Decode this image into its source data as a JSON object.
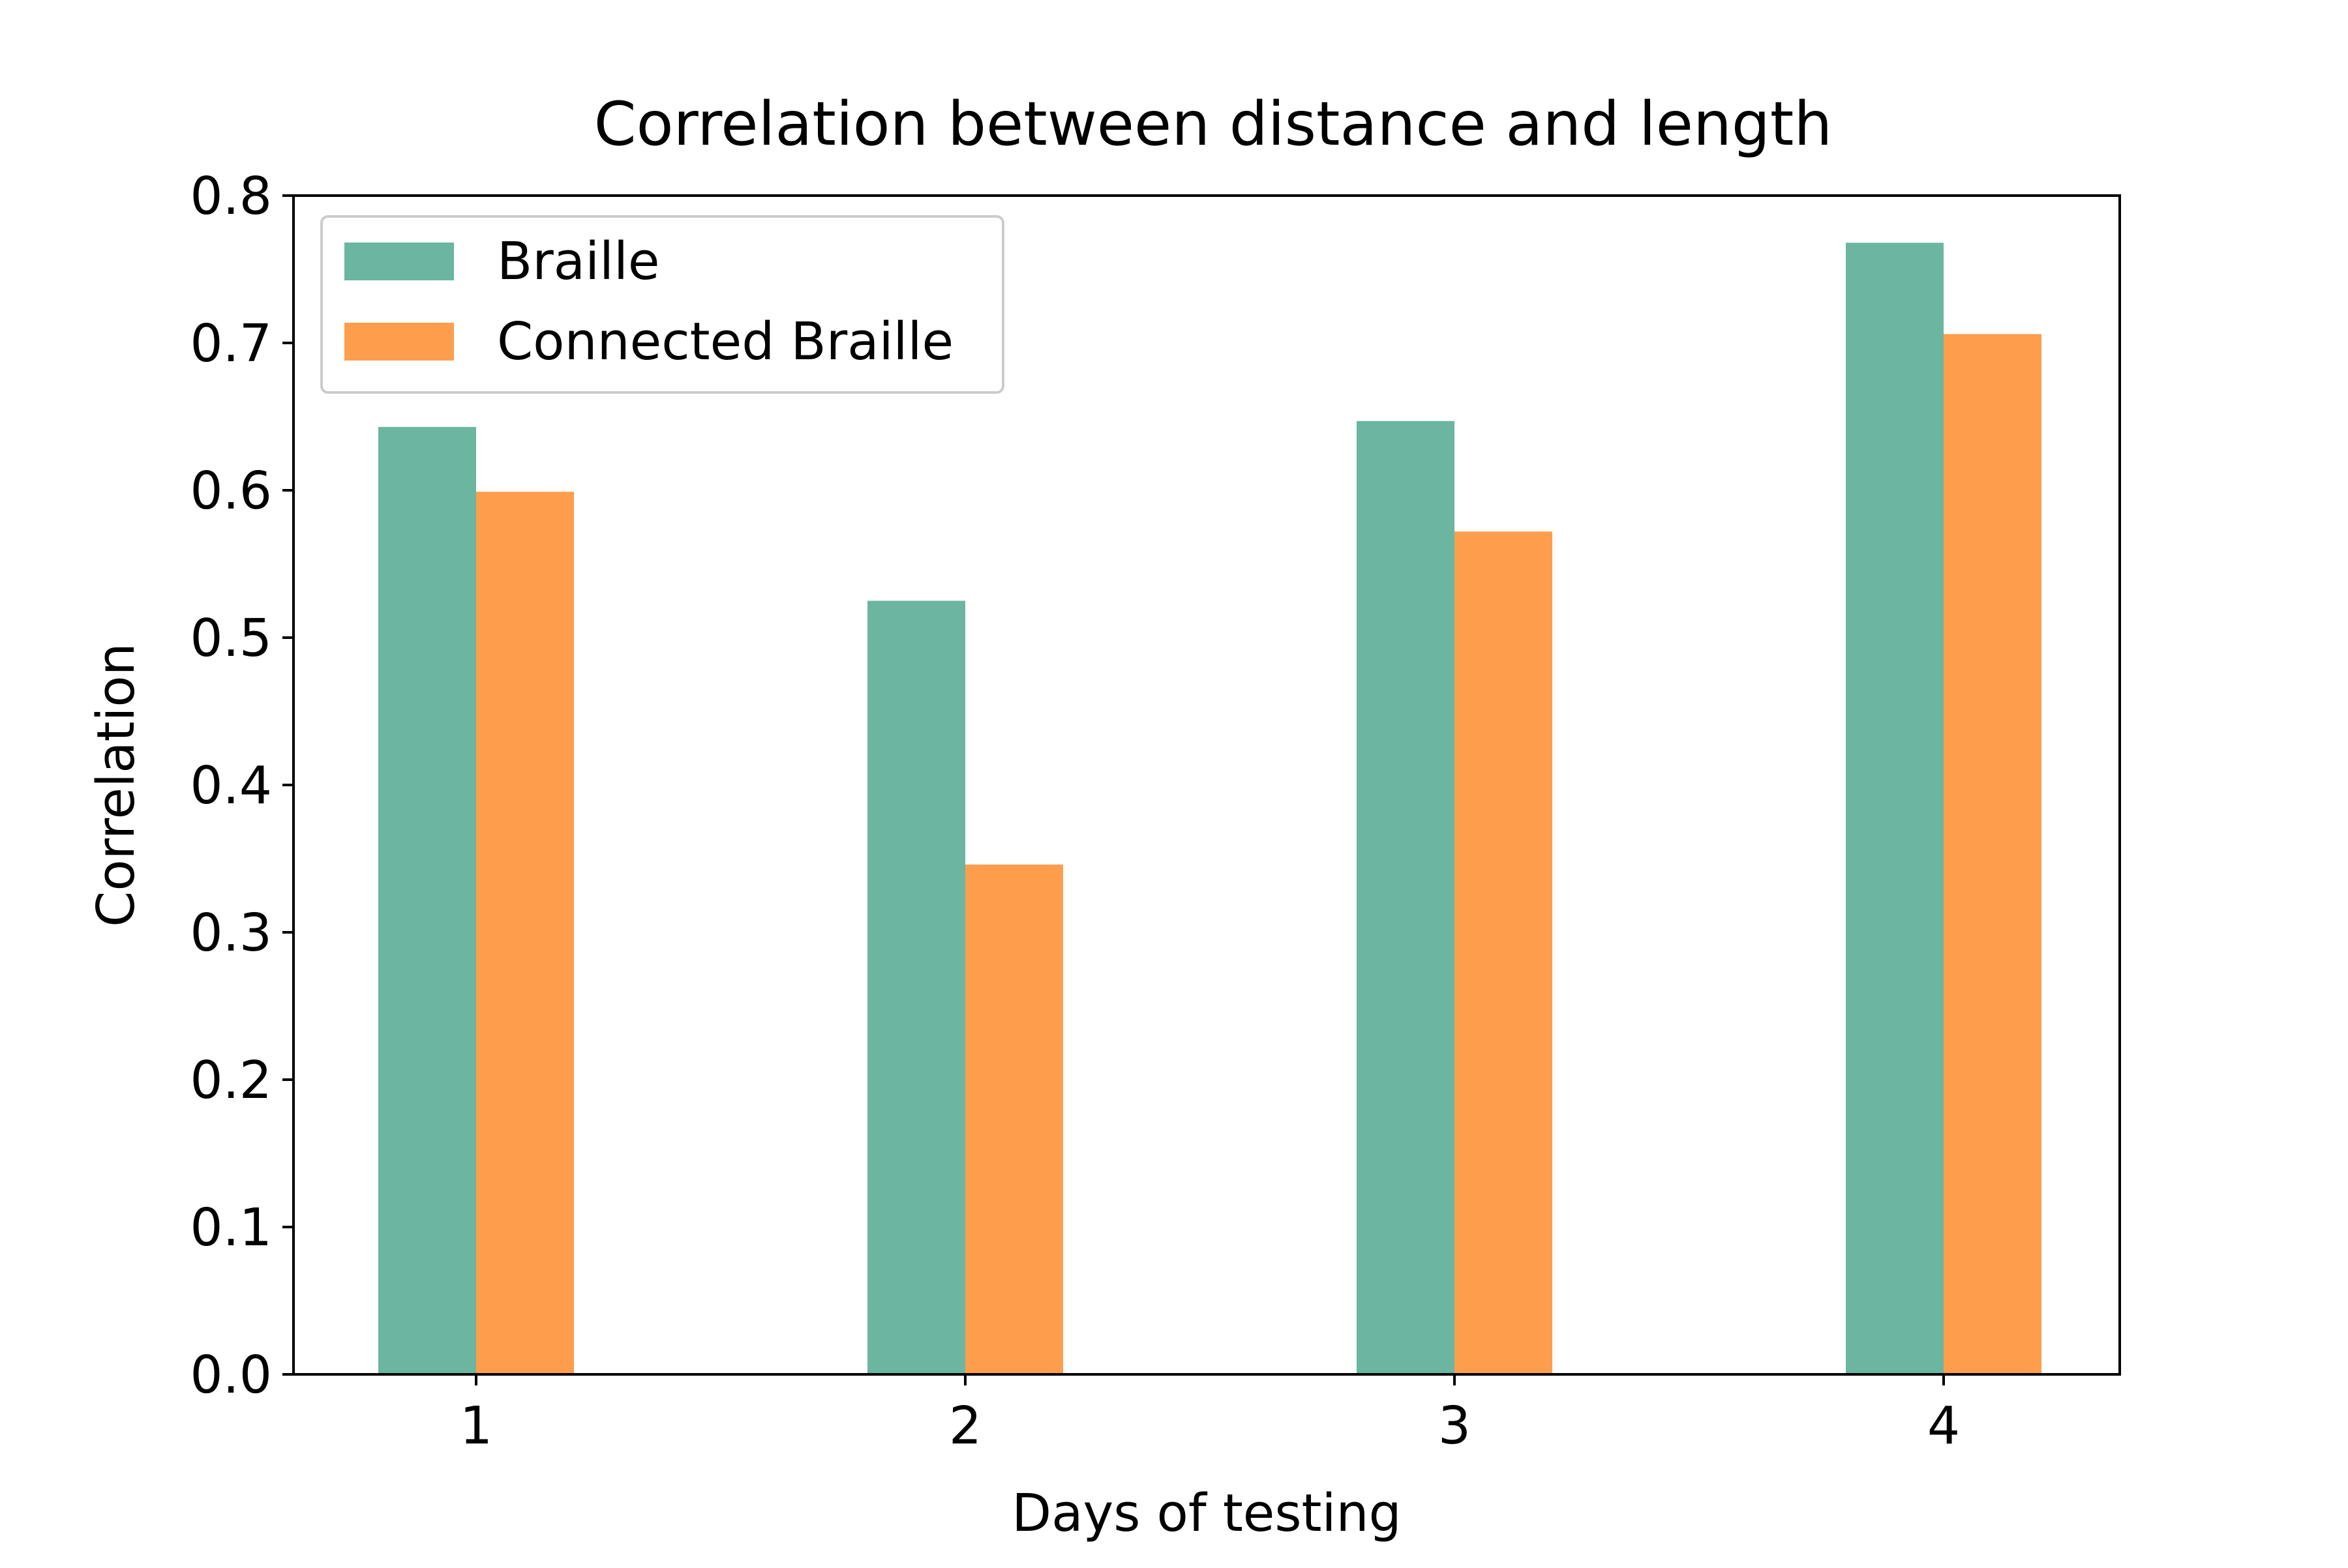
{
  "chart_data": {
    "type": "bar",
    "title": "Correlation between distance and length",
    "xlabel": "Days of testing",
    "ylabel": "Correlation",
    "categories": [
      "1",
      "2",
      "3",
      "4"
    ],
    "series": [
      {
        "name": "Braille",
        "values": [
          0.643,
          0.525,
          0.647,
          0.768
        ],
        "color": "#6bb5a1"
      },
      {
        "name": "Connected Braille",
        "values": [
          0.599,
          0.346,
          0.572,
          0.706
        ],
        "color": "#fe9e4c"
      }
    ],
    "ylim": [
      0,
      0.8
    ],
    "yticks": [
      "0.0",
      "0.1",
      "0.2",
      "0.3",
      "0.4",
      "0.5",
      "0.6",
      "0.7",
      "0.8"
    ],
    "grid": false,
    "legend_position": "top-left"
  }
}
